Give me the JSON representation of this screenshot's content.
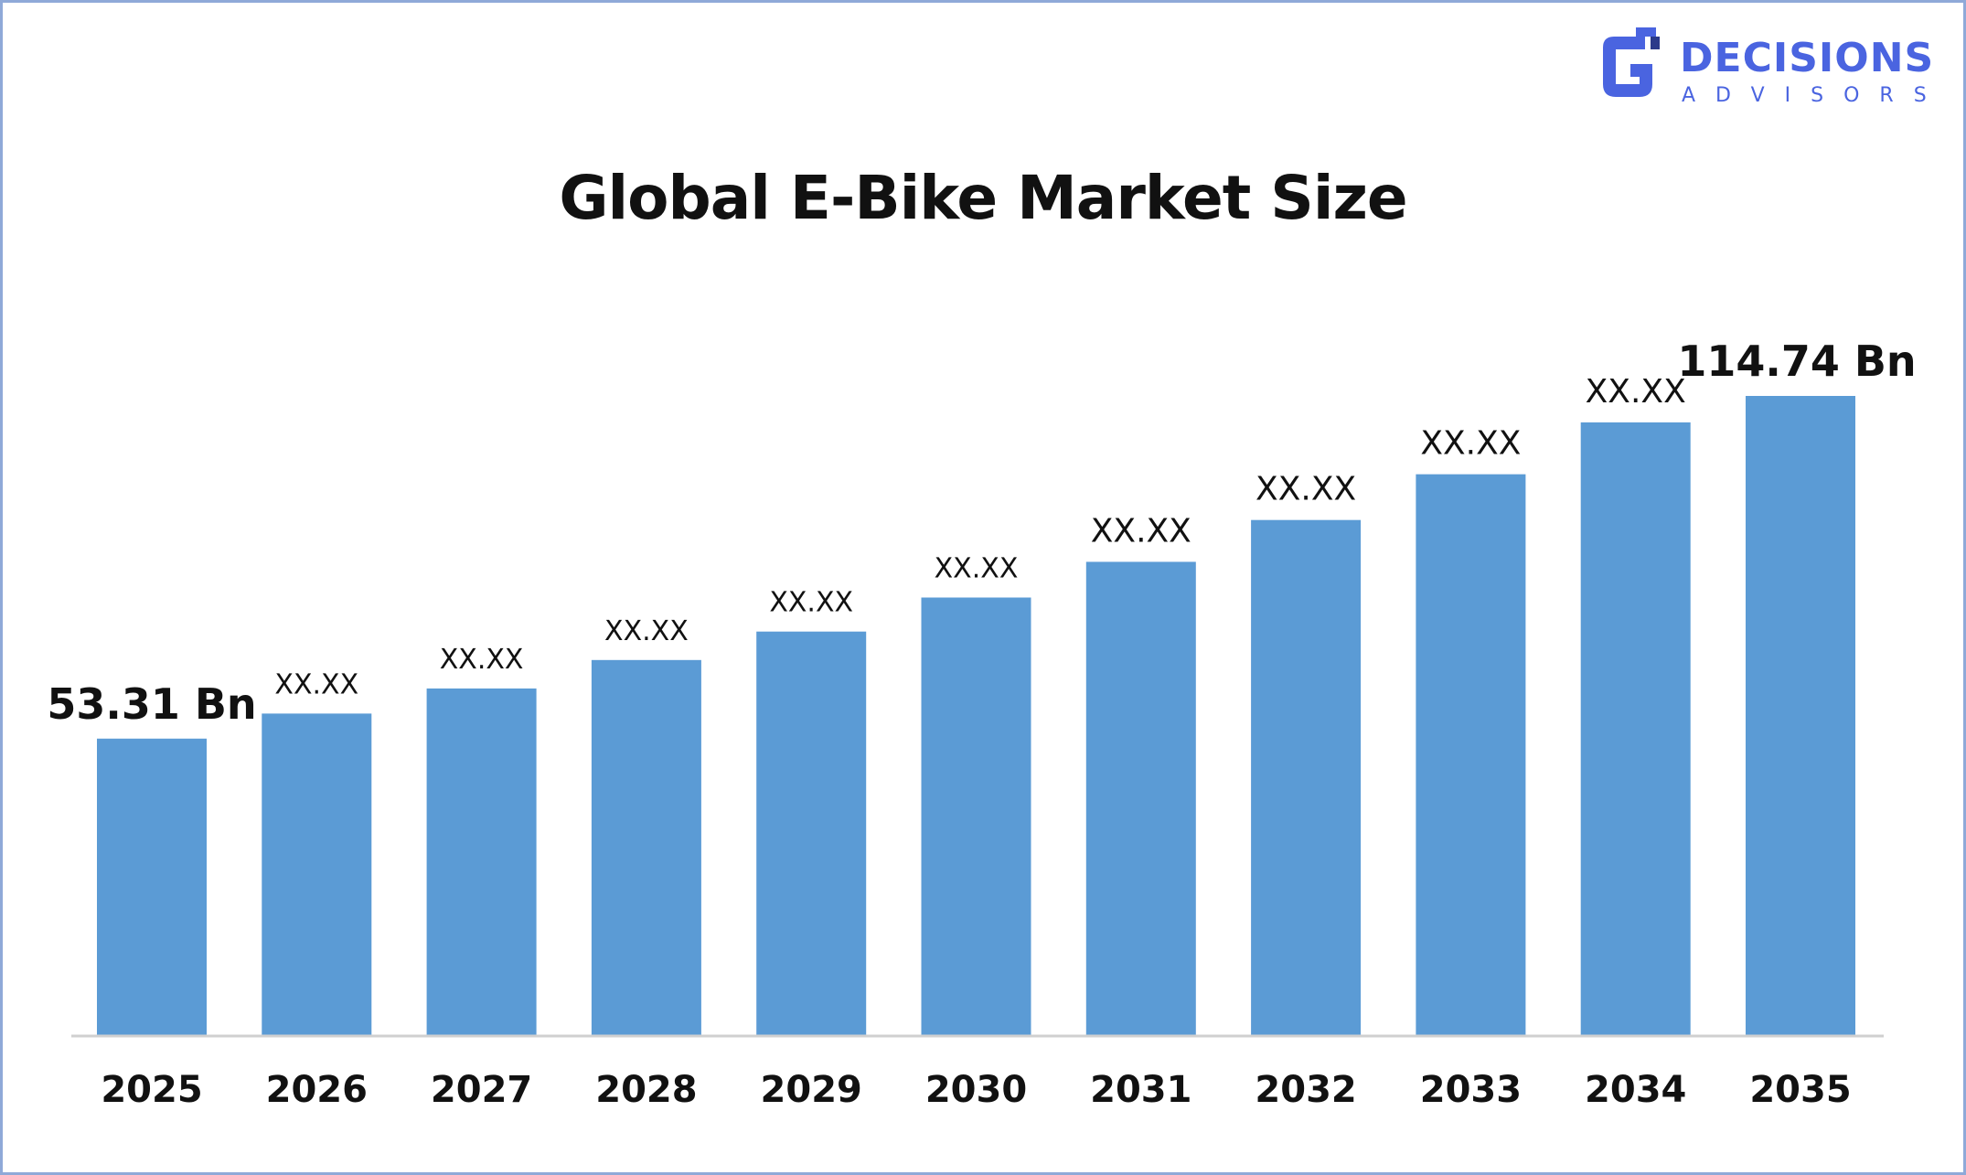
{
  "brand": {
    "name": "DECISIONS",
    "sub": "ADVISORS",
    "color": "#4a64e0"
  },
  "chart_data": {
    "type": "bar",
    "title": "Global E-Bike Market Size",
    "categories": [
      "2025",
      "2026",
      "2027",
      "2028",
      "2029",
      "2030",
      "2031",
      "2032",
      "2033",
      "2034",
      "2035"
    ],
    "values": [
      53.31,
      57.8,
      62.3,
      67.4,
      72.5,
      78.6,
      85.0,
      92.5,
      100.7,
      110.0,
      114.74
    ],
    "data_labels": [
      "53.31 Bn",
      "XX.XX",
      "XX.XX",
      "XX.XX",
      "XX.XX",
      "XX.XX",
      "XX.XX",
      "XX.XX",
      "XX.XX",
      "XX.XX",
      "114.74 Bn"
    ],
    "bar_color": "#5b9bd5",
    "ylim": [
      0,
      120
    ],
    "grid": false,
    "legend": "none",
    "xlabel": "",
    "ylabel": ""
  }
}
